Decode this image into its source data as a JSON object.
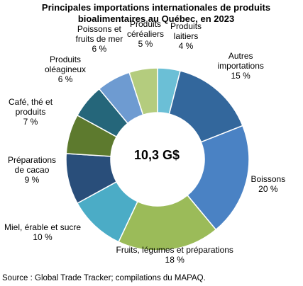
{
  "chart_data": {
    "type": "pie",
    "style": "donut",
    "title_lines": [
      "Principales importations internationales de produits",
      "bioalimentaires au Québec, en 2023"
    ],
    "center_label": "10,3 G$",
    "source": "Source : Global Trade Tracker; compilations du MAPAQ.",
    "slices": [
      {
        "label_lines": [
          "Produits",
          "laitiers"
        ],
        "value": 4,
        "value_text": "4 %",
        "color": "#6bbfd6"
      },
      {
        "label_lines": [
          "Autres",
          "importations"
        ],
        "value": 15,
        "value_text": "15 %",
        "color": "#33679c"
      },
      {
        "label_lines": [
          "Boissons"
        ],
        "value": 20,
        "value_text": "20 %",
        "color": "#4a82c4"
      },
      {
        "label_lines": [
          "Fruits, légumes et préparations"
        ],
        "value": 18,
        "value_text": "18 %",
        "color": "#9bbb59"
      },
      {
        "label_lines": [
          "Miel, érable et sucre"
        ],
        "value": 10,
        "value_text": "10 %",
        "color": "#4bacc6"
      },
      {
        "label_lines": [
          "Préparations",
          "de cacao"
        ],
        "value": 9,
        "value_text": "9 %",
        "color": "#294e7a"
      },
      {
        "label_lines": [
          "Café, thé et",
          "produits"
        ],
        "value": 7,
        "value_text": "7 %",
        "color": "#5d7a2e"
      },
      {
        "label_lines": [
          "Produits",
          "oléagineux"
        ],
        "value": 6,
        "value_text": "6 %",
        "color": "#25667a"
      },
      {
        "label_lines": [
          "Poissons et",
          "fruits de mer"
        ],
        "value": 6,
        "value_text": "6 %",
        "color": "#6e9bd1"
      },
      {
        "label_lines": [
          "Produits",
          "céréaliers"
        ],
        "value": 5,
        "value_text": "5 %",
        "color": "#b4cc7e"
      }
    ]
  }
}
